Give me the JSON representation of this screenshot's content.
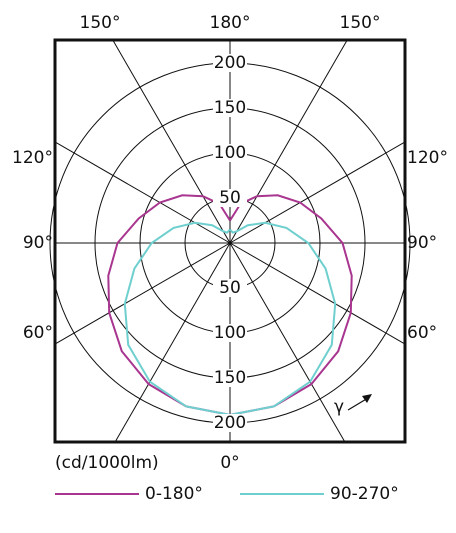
{
  "chart_data": {
    "type": "polar",
    "unit_label": "(cd/1000lm)",
    "angles": [
      0,
      15,
      30,
      45,
      60,
      75,
      90,
      105,
      120,
      135,
      150,
      165,
      180
    ],
    "series": [
      {
        "name": "0-180°",
        "color": "#a8358f",
        "values": [
          191,
          188,
          181,
          170,
          155,
          140,
          125,
          105,
          90,
          75,
          60,
          45,
          25
        ]
      },
      {
        "name": "90-270°",
        "color": "#6fcfcf",
        "values": [
          191,
          188,
          178,
          160,
          135,
          110,
          87,
          65,
          45,
          28,
          15,
          12,
          15
        ]
      }
    ],
    "rlim": [
      0,
      200
    ],
    "rticks": [
      50,
      100,
      150,
      200
    ],
    "angle_ticks": [
      {
        "value": 0,
        "label": "0°"
      },
      {
        "value": 60,
        "label": "60°"
      },
      {
        "value": 90,
        "label": "90°"
      },
      {
        "value": 120,
        "label": "120°"
      },
      {
        "value": 150,
        "label": "150°"
      },
      {
        "value": 180,
        "label": "180°"
      }
    ],
    "direction_label": "γ"
  }
}
